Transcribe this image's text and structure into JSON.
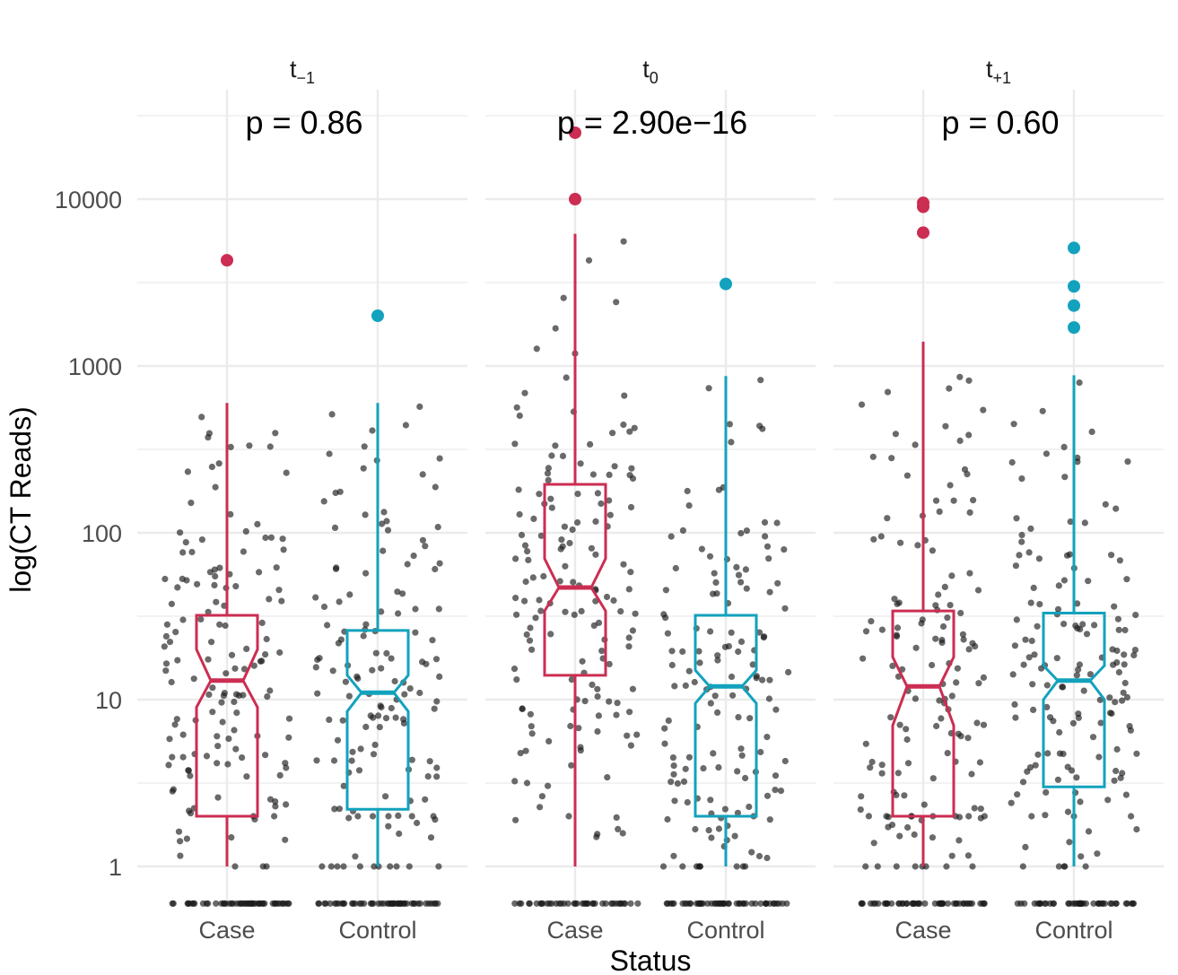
{
  "chart_data": {
    "type": "boxplot",
    "title": "",
    "xlabel": "Status",
    "ylabel": "log(CT Reads)",
    "y_scale": "log10",
    "y_ticks": [
      {
        "value": 1,
        "label": "1"
      },
      {
        "value": 10,
        "label": "10"
      },
      {
        "value": 100,
        "label": "100"
      },
      {
        "value": 1000,
        "label": "1000"
      },
      {
        "value": 10000,
        "label": "10000"
      }
    ],
    "ylim": [
      0.5,
      40000
    ],
    "zero_floor": 0.6,
    "colors": {
      "Case": "#cc2d52",
      "Control": "#12a2bd",
      "points": "#1a1a1a",
      "grid": "#ebebeb"
    },
    "categories": [
      "Case",
      "Control"
    ],
    "panels": [
      {
        "base": "t",
        "sub": "−1",
        "p_label": "p = 0.86",
        "boxes": [
          {
            "group": "Case",
            "q1": 2,
            "median": 13,
            "q3": 32,
            "whisker_low": 1,
            "whisker_high": 600,
            "notch_low": 9,
            "notch_high": 20,
            "outliers": [
              4300
            ]
          },
          {
            "group": "Control",
            "q1": 2.2,
            "median": 11,
            "q3": 26,
            "whisker_low": 1,
            "whisker_high": 600,
            "notch_low": 8.5,
            "notch_high": 14,
            "outliers": [
              2000
            ]
          }
        ]
      },
      {
        "base": "t",
        "sub": "0",
        "p_label": "p = 2.90e−16",
        "boxes": [
          {
            "group": "Case",
            "q1": 14,
            "median": 47,
            "q3": 195,
            "whisker_low": 1,
            "whisker_high": 6200,
            "notch_low": 34,
            "notch_high": 70,
            "outliers": [
              10000,
              25000
            ]
          },
          {
            "group": "Control",
            "q1": 2,
            "median": 12,
            "q3": 32,
            "whisker_low": 1,
            "whisker_high": 870,
            "notch_low": 9.5,
            "notch_high": 15,
            "outliers": [
              3100
            ]
          }
        ]
      },
      {
        "base": "t",
        "sub": "+1",
        "p_label": "p = 0.60",
        "boxes": [
          {
            "group": "Case",
            "q1": 2,
            "median": 12,
            "q3": 34,
            "whisker_low": 1,
            "whisker_high": 1400,
            "notch_low": 7,
            "notch_high": 18,
            "outliers": [
              6300,
              9000,
              9500
            ]
          },
          {
            "group": "Control",
            "q1": 3,
            "median": 13,
            "q3": 33,
            "whisker_low": 1,
            "whisker_high": 880,
            "notch_low": 10,
            "notch_high": 16,
            "outliers": [
              1700,
              2300,
              3000,
              5100
            ]
          }
        ]
      }
    ]
  }
}
